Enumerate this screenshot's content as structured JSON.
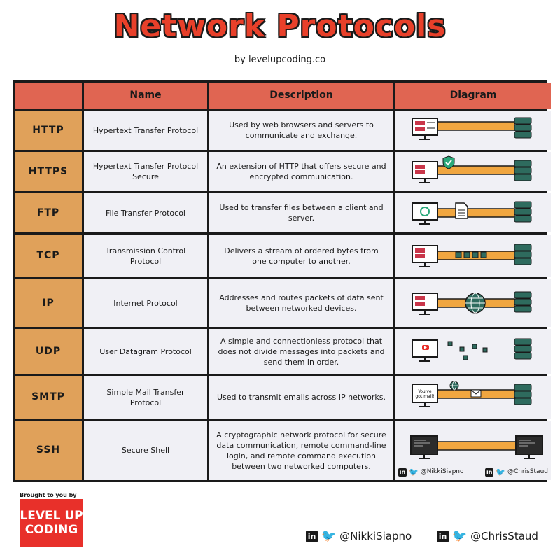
{
  "title": "Network Protocols",
  "byline": "by levelupcoding.co",
  "headers": {
    "name": "Name",
    "description": "Description",
    "diagram": "Diagram"
  },
  "rows": [
    {
      "protocol": "HTTP",
      "name": "Hypertext Transfer Protocol",
      "description": "Used by web browsers and servers to communicate and exchange."
    },
    {
      "protocol": "HTTPS",
      "name": "Hypertext Transfer Protocol Secure",
      "description": "An extension of HTTP that offers secure and encrypted communication."
    },
    {
      "protocol": "FTP",
      "name": "File Transfer Protocol",
      "description": "Used to transfer files between a client and server."
    },
    {
      "protocol": "TCP",
      "name": "Transmission Control Protocol",
      "description": "Delivers a stream of ordered bytes from one computer to another."
    },
    {
      "protocol": "IP",
      "name": "Internet Protocol",
      "description": "Addresses and routes packets of data sent between networked devices."
    },
    {
      "protocol": "UDP",
      "name": "User Datagram Protocol",
      "description": "A simple and connectionless protocol that does not divide messages into packets and send them in order."
    },
    {
      "protocol": "SMTP",
      "name": "Simple Mail Transfer Protocol",
      "description": "Used to transmit emails across IP networks."
    },
    {
      "protocol": "SSH",
      "name": "Secure Shell",
      "description": "A cryptographic network protocol for secure data communication, remote command-line login, and remote command execution between two networked computers."
    }
  ],
  "smtp_screen_text": "You've got mail!",
  "diagram_credits": {
    "left": "@NikkiSiapno",
    "right": "@ChrisStaud"
  },
  "footer": {
    "brought_to_you_by": "Brought to you by",
    "logo_line1": "LEVEL UP",
    "logo_line2": "CODING",
    "social_left": "@NikkiSiapno",
    "social_right": "@ChrisStaud",
    "linkedin_glyph": "in",
    "twitter_glyph": "🐦"
  },
  "colors": {
    "title_red": "#e8402a",
    "header_red": "#e06552",
    "protocol_orange": "#e0a15a",
    "pipe_orange": "#f0a640",
    "server_green": "#2e6b5e",
    "monitor_red": "#c9364a",
    "logo_red": "#e8302a"
  },
  "icons": [
    "monitor-icon",
    "server-icon",
    "shield-check-icon",
    "document-icon",
    "globe-icon",
    "mail-icon",
    "linkedin-icon",
    "twitter-icon"
  ]
}
